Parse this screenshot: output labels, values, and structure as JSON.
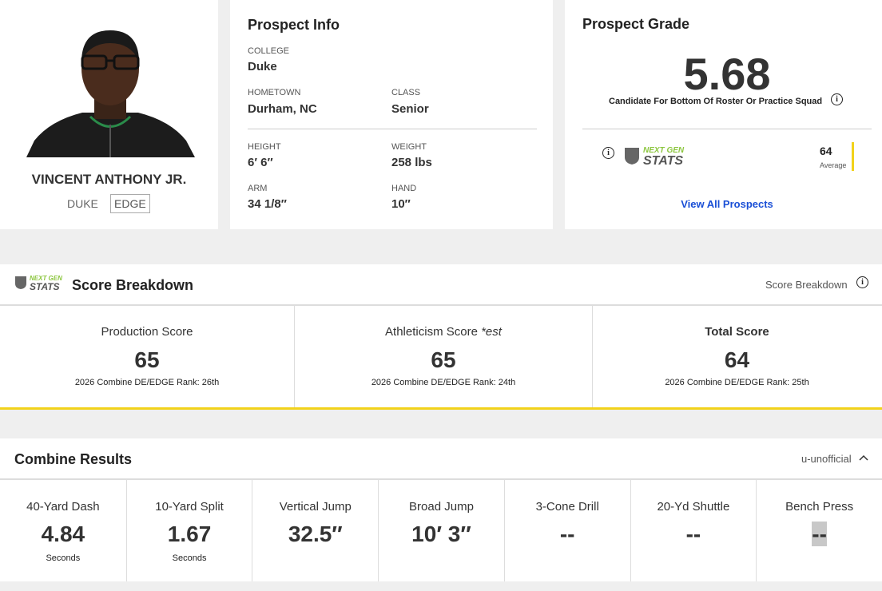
{
  "player": {
    "name": "VINCENT ANTHONY JR.",
    "college": "DUKE",
    "position": "EDGE"
  },
  "prospect_info": {
    "title": "Prospect Info",
    "fields": [
      {
        "label": "COLLEGE",
        "value": "Duke"
      },
      {
        "label": "HOMETOWN",
        "value": "Durham, NC"
      },
      {
        "label": "CLASS",
        "value": "Senior"
      },
      {
        "label": "HEIGHT",
        "value": "6′ 6″"
      },
      {
        "label": "WEIGHT",
        "value": "258 lbs"
      },
      {
        "label": "ARM",
        "value": "34 1/8″"
      },
      {
        "label": "HAND",
        "value": "10″"
      }
    ]
  },
  "prospect_grade": {
    "title": "Prospect Grade",
    "grade": "5.68",
    "description": "Candidate For Bottom Of Roster Or Practice Squad",
    "logo": {
      "top": "NEXT GEN",
      "bottom": "STATS"
    },
    "ngs_score": 64,
    "ngs_label": "Average",
    "link": "View All Prospects"
  },
  "score_breakdown": {
    "title": "Score Breakdown",
    "header_link": "Score Breakdown",
    "scores": [
      {
        "label": "Production Score",
        "value": 65,
        "rank": "2026 Combine DE/EDGE Rank: 26th"
      },
      {
        "label": "Athleticism Score",
        "suffix": "*est",
        "value": 65,
        "rank": "2026 Combine DE/EDGE Rank: 24th"
      },
      {
        "label": "Total Score",
        "value": 64,
        "rank": "2026 Combine DE/EDGE Rank: 25th"
      }
    ]
  },
  "combine_results": {
    "title": "Combine Results",
    "status": "u-unofficial",
    "drills": [
      {
        "name": "40-Yard Dash",
        "value": "4.84",
        "unit": "Seconds"
      },
      {
        "name": "10-Yard Split",
        "value": "1.67",
        "unit": "Seconds"
      },
      {
        "name": "Vertical Jump",
        "value": "32.5″"
      },
      {
        "name": "Broad Jump",
        "value": "10′ 3″"
      },
      {
        "name": "3-Cone Drill",
        "value": "--"
      },
      {
        "name": "20-Yd Shuttle",
        "value": "--"
      },
      {
        "name": "Bench Press",
        "value": "--"
      }
    ]
  }
}
